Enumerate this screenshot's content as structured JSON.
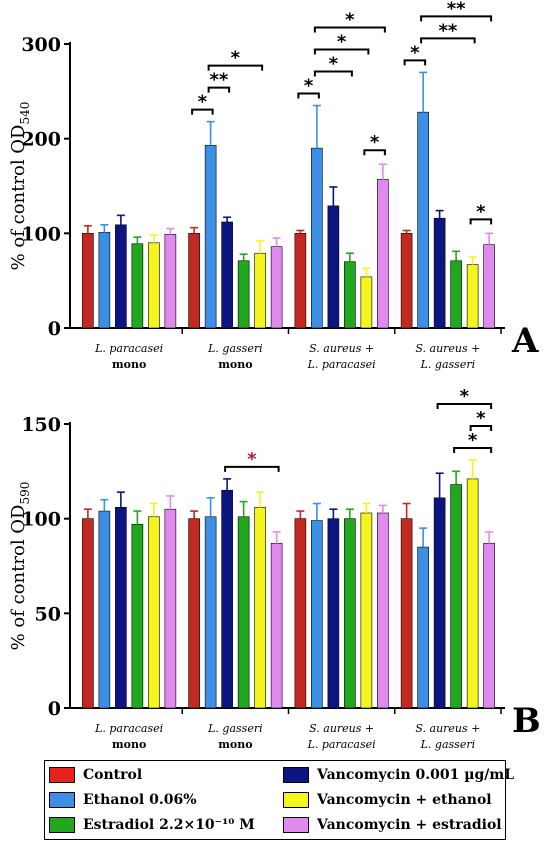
{
  "legend": [
    {
      "label": "Control",
      "color": "#e8211c"
    },
    {
      "label": "Ethanol 0.06%",
      "color": "#3d8fe6"
    },
    {
      "label": "Estradiol 2.2×10⁻¹⁰ M",
      "color": "#22a81e"
    },
    {
      "label": "Vancomycin 0.001 µg/mL",
      "color": "#0d1580"
    },
    {
      "label": "Vancomycin + ethanol",
      "color": "#f5f51e"
    },
    {
      "label": "Vancomycin + estradiol",
      "color": "#e089ef"
    }
  ],
  "chart_data": [
    {
      "type": "bar",
      "panel_label": "A",
      "ylabel": "% of control OD",
      "ylabel_sub": "540",
      "ylim": [
        0,
        300
      ],
      "yticks": [
        0,
        100,
        200,
        300
      ],
      "groups": [
        {
          "label": "L. paracasei",
          "sublabel": "mono"
        },
        {
          "label": "L. gasseri",
          "sublabel": "mono"
        },
        {
          "label": "S. aureus +",
          "sublabel": "L. paracasei"
        },
        {
          "label": "S. aureus +",
          "sublabel": "L. gasseri"
        }
      ],
      "series": [
        {
          "color": "#c22a21",
          "values": [
            100,
            100,
            100,
            100
          ],
          "errors": [
            8,
            6,
            3,
            3
          ]
        },
        {
          "color": "#3d8fe6",
          "values": [
            101,
            193,
            190,
            228
          ],
          "errors": [
            8,
            25,
            45,
            42
          ]
        },
        {
          "color": "#0d1580",
          "values": [
            109,
            112,
            129,
            116
          ],
          "errors": [
            10,
            5,
            20,
            8
          ]
        },
        {
          "color": "#22a81e",
          "values": [
            89,
            71,
            70,
            71
          ],
          "errors": [
            7,
            7,
            9,
            10
          ]
        },
        {
          "color": "#f5f51e",
          "values": [
            90,
            79,
            54,
            67
          ],
          "errors": [
            8,
            13,
            9,
            8
          ]
        },
        {
          "color": "#e089ef",
          "values": [
            99,
            86,
            157,
            88
          ],
          "errors": [
            6,
            9,
            16,
            12
          ]
        }
      ],
      "significance": [
        {
          "group": 1,
          "from": 0,
          "to": 1,
          "label": "*",
          "level": 0
        },
        {
          "group": 1,
          "from": 1,
          "to": 2,
          "label": "**",
          "level": 1
        },
        {
          "group": 1,
          "from": 1,
          "to": 4,
          "label": "*",
          "level": 2
        },
        {
          "group": 2,
          "from": 0,
          "to": 1,
          "label": "*",
          "level": 0
        },
        {
          "group": 2,
          "from": 1,
          "to": 3,
          "label": "*",
          "level": 1
        },
        {
          "group": 2,
          "from": 1,
          "to": 4,
          "label": "*",
          "level": 2
        },
        {
          "group": 2,
          "from": 1,
          "to": 5,
          "label": "*",
          "level": 3
        },
        {
          "group": 2,
          "from": 4,
          "to": 5,
          "label": "*",
          "level": -1
        },
        {
          "group": 3,
          "from": 0,
          "to": 1,
          "label": "*",
          "level": 0
        },
        {
          "group": 3,
          "from": 1,
          "to": 4,
          "label": "**",
          "level": 1
        },
        {
          "group": 3,
          "from": 1,
          "to": 5,
          "label": "**",
          "level": 2
        },
        {
          "group": 3,
          "from": 4,
          "to": 5,
          "label": "*",
          "level": -1
        }
      ]
    },
    {
      "type": "bar",
      "panel_label": "B",
      "ylabel": "% of control OD",
      "ylabel_sub": "590",
      "ylim": [
        0,
        150
      ],
      "yticks": [
        0,
        50,
        100,
        150
      ],
      "groups": [
        {
          "label": "L. paracasei",
          "sublabel": "mono"
        },
        {
          "label": "L. gasseri",
          "sublabel": "mono"
        },
        {
          "label": "S. aureus +",
          "sublabel": "L. paracasei"
        },
        {
          "label": "S. aureus +",
          "sublabel": "L. gasseri"
        }
      ],
      "series": [
        {
          "color": "#c22a21",
          "values": [
            100,
            100,
            100,
            100
          ],
          "errors": [
            5,
            4,
            4,
            8
          ]
        },
        {
          "color": "#3d8fe6",
          "values": [
            104,
            101,
            99,
            85
          ],
          "errors": [
            6,
            10,
            9,
            10
          ]
        },
        {
          "color": "#0d1580",
          "values": [
            106,
            115,
            100,
            111
          ],
          "errors": [
            8,
            6,
            5,
            13
          ]
        },
        {
          "color": "#22a81e",
          "values": [
            97,
            101,
            100,
            118
          ],
          "errors": [
            7,
            8,
            5,
            7
          ]
        },
        {
          "color": "#f5f51e",
          "values": [
            101,
            106,
            103,
            121
          ],
          "errors": [
            7,
            8,
            5,
            10
          ]
        },
        {
          "color": "#e089ef",
          "values": [
            105,
            87,
            103,
            87
          ],
          "errors": [
            7,
            6,
            4,
            6
          ]
        }
      ],
      "significance": [
        {
          "group": 1,
          "from": 2,
          "to": 5,
          "label": "*",
          "level": 0,
          "color": "#c0143c"
        },
        {
          "group": 3,
          "from": 3,
          "to": 5,
          "label": "*",
          "level": 0
        },
        {
          "group": 3,
          "from": 4,
          "to": 5,
          "label": "*",
          "level": 1
        },
        {
          "group": 3,
          "from": 2,
          "to": 5,
          "label": "*",
          "level": 2
        }
      ]
    }
  ]
}
